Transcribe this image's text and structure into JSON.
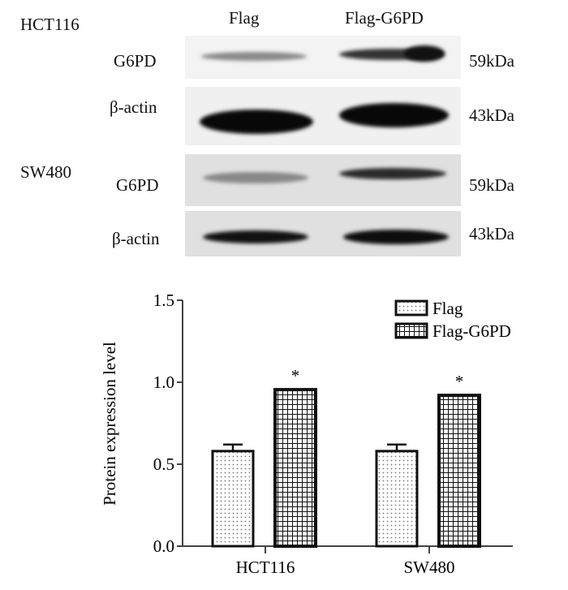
{
  "blot": {
    "cell_lines": [
      "HCT116",
      "SW480"
    ],
    "lanes": [
      "Flag",
      "Flag-G6PD"
    ],
    "rows": [
      {
        "protein": "G6PD",
        "size": "59kDa"
      },
      {
        "protein": "β-actin",
        "size": "43kDa"
      },
      {
        "protein": "G6PD",
        "size": "59kDa"
      },
      {
        "protein": "β-actin",
        "size": "43kDa"
      }
    ]
  },
  "chart_data": {
    "type": "bar",
    "categories": [
      "HCT116",
      "SW480"
    ],
    "series": [
      {
        "name": "Flag",
        "values": [
          0.58,
          0.58
        ],
        "error": [
          0.04,
          0.04
        ],
        "pattern": "dots"
      },
      {
        "name": "Flag-G6PD",
        "values": [
          0.955,
          0.92
        ],
        "error": [
          0,
          0
        ],
        "pattern": "grid"
      }
    ],
    "ylabel": "Protein expression level",
    "xlabel": "",
    "ylim": [
      0,
      1.5
    ],
    "yticks": [
      "0.0",
      "0.5",
      "1.0",
      "1.5"
    ],
    "annotations": [
      "*",
      "*"
    ],
    "legend": "top-right",
    "grid": false
  }
}
